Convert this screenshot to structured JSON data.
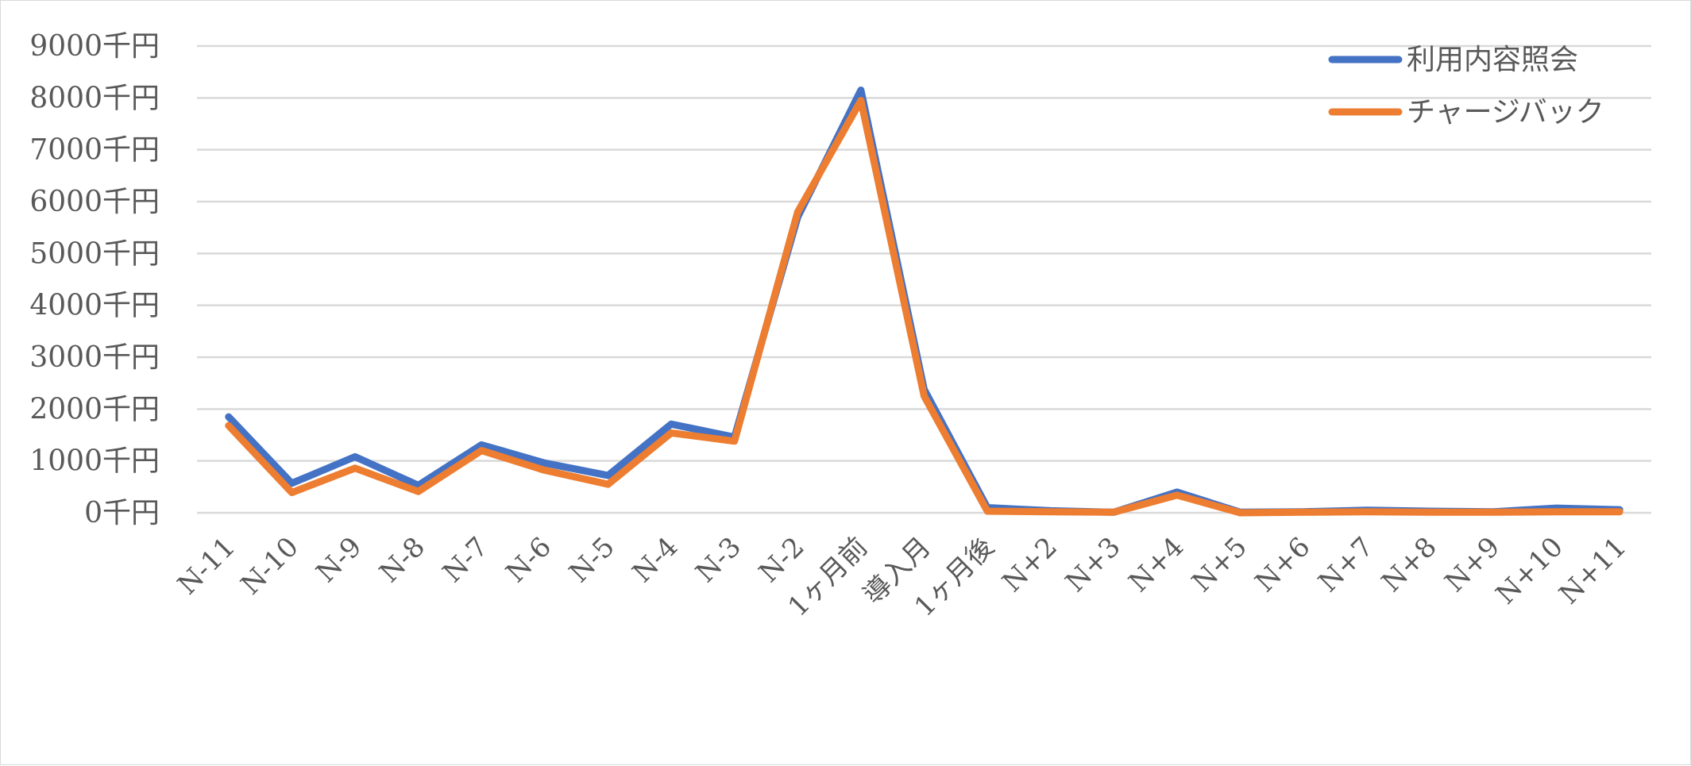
{
  "chart_data": {
    "type": "line",
    "categories": [
      "N-11",
      "N-10",
      "N-9",
      "N-8",
      "N-7",
      "N-6",
      "N-5",
      "N-4",
      "N-3",
      "N-2",
      "1ヶ月前",
      "導入月",
      "1ヶ月後",
      "N+2",
      "N+3",
      "N+4",
      "N+5",
      "N+6",
      "N+7",
      "N+8",
      "N+9",
      "N+10",
      "N+11"
    ],
    "y_tick_labels": [
      "0千円",
      "1000千円",
      "2000千円",
      "3000千円",
      "4000千円",
      "5000千円",
      "6000千円",
      "7000千円",
      "8000千円",
      "9000千円"
    ],
    "ylim": [
      0,
      9000
    ],
    "y_unit": "千円",
    "grid": true,
    "legend_position": "top-right",
    "series": [
      {
        "name": "利用内容照会",
        "color": "#4472C4",
        "values": [
          1850,
          570,
          1080,
          530,
          1310,
          960,
          720,
          1710,
          1460,
          5700,
          8150,
          2380,
          100,
          40,
          10,
          400,
          10,
          20,
          50,
          30,
          20,
          90,
          60
        ]
      },
      {
        "name": "チャージバック",
        "color": "#ED7D31",
        "values": [
          1680,
          390,
          860,
          410,
          1200,
          820,
          550,
          1540,
          1380,
          5800,
          7950,
          2250,
          30,
          20,
          10,
          340,
          0,
          10,
          20,
          10,
          10,
          20,
          20
        ]
      }
    ]
  }
}
